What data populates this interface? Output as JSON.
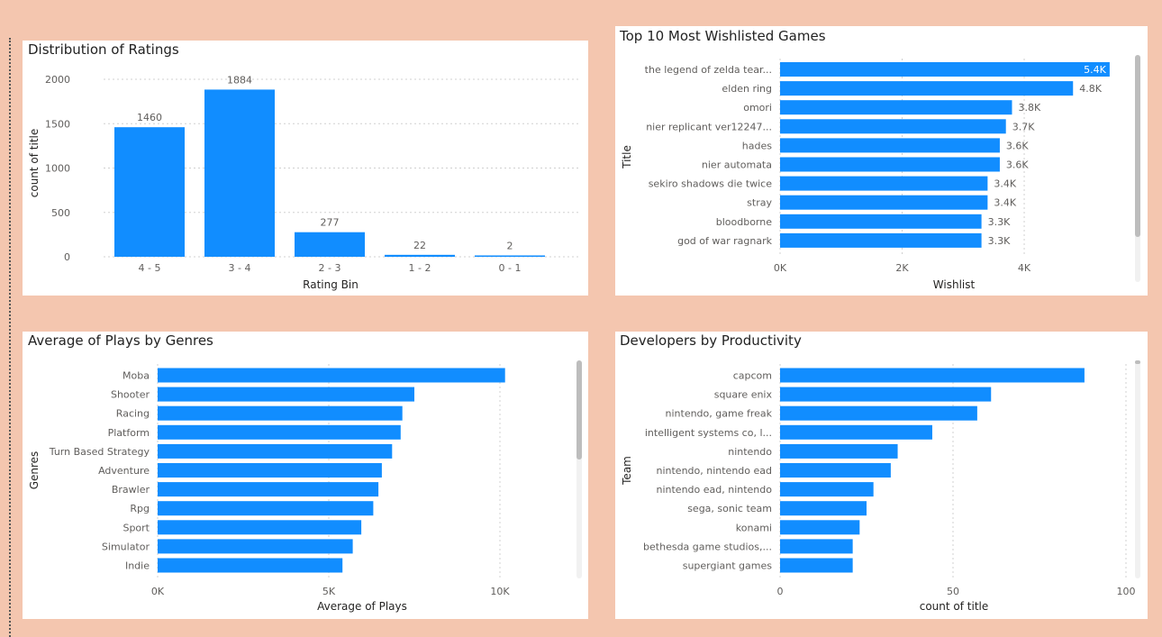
{
  "colors": {
    "bar": "#118DFF",
    "grid": "#D0D0D0",
    "axis_text": "#605E5C",
    "label": "#252423"
  },
  "chart_data": [
    {
      "id": "ratings",
      "type": "bar",
      "title": "Distribution of Ratings",
      "xlabel": "Rating Bin",
      "ylabel": "count of title",
      "categories": [
        "4 - 5",
        "3 - 4",
        "2 - 3",
        "1 - 2",
        "0 - 1"
      ],
      "values": [
        1460,
        1884,
        277,
        22,
        2
      ],
      "ylim": [
        0,
        2000
      ],
      "yticks": [
        0,
        500,
        1000,
        1500,
        2000
      ],
      "ytick_labels": [
        "0",
        "500",
        "1000",
        "1500",
        "2000"
      ],
      "grid": true
    },
    {
      "id": "wishlist",
      "type": "bar",
      "orientation": "horizontal",
      "title": "Top 10 Most Wishlisted Games",
      "xlabel": "Wishlist",
      "ylabel": "Title",
      "categories": [
        "the legend of zelda tear...",
        "elden ring",
        "omori",
        "nier replicant ver12247...",
        "hades",
        "nier automata",
        "sekiro shadows die twice",
        "stray",
        "bloodborne",
        "god of war ragnark"
      ],
      "values": [
        5400,
        4800,
        3800,
        3700,
        3600,
        3600,
        3400,
        3400,
        3300,
        3300
      ],
      "value_labels": [
        "5.4K",
        "4.8K",
        "3.8K",
        "3.7K",
        "3.6K",
        "3.6K",
        "3.4K",
        "3.4K",
        "3.3K",
        "3.3K"
      ],
      "xlim": [
        0,
        5800
      ],
      "xticks": [
        0,
        2000,
        4000
      ],
      "xtick_labels": [
        "0K",
        "2K",
        "4K"
      ],
      "grid": true
    },
    {
      "id": "genres",
      "type": "bar",
      "orientation": "horizontal",
      "title": "Average of Plays by Genres",
      "xlabel": "Average of Plays",
      "ylabel": "Genres",
      "categories": [
        "Moba",
        "Shooter",
        "Racing",
        "Platform",
        "Turn Based Strategy",
        "Adventure",
        "Brawler",
        "Rpg",
        "Sport",
        "Simulator",
        "Indie"
      ],
      "values": [
        10150,
        7500,
        7150,
        7100,
        6850,
        6550,
        6450,
        6300,
        5950,
        5700,
        5400
      ],
      "xlim": [
        0,
        12000
      ],
      "xticks": [
        0,
        5000,
        10000
      ],
      "xtick_labels": [
        "0K",
        "5K",
        "10K"
      ],
      "grid": true
    },
    {
      "id": "developers",
      "type": "bar",
      "orientation": "horizontal",
      "title": "Developers by Productivity",
      "xlabel": "count of title",
      "ylabel": "Team",
      "categories": [
        "capcom",
        "square enix",
        "nintendo, game freak",
        "intelligent systems co, l...",
        "nintendo",
        "nintendo, nintendo ead",
        "nintendo ead, nintendo",
        "sega, sonic team",
        "konami",
        "bethesda game studios,...",
        "supergiant games"
      ],
      "values": [
        88,
        61,
        57,
        44,
        34,
        32,
        27,
        25,
        23,
        21,
        21
      ],
      "xlim": [
        0,
        100
      ],
      "xticks": [
        0,
        50,
        100
      ],
      "xtick_labels": [
        "0",
        "50",
        "100"
      ],
      "grid": true
    }
  ]
}
